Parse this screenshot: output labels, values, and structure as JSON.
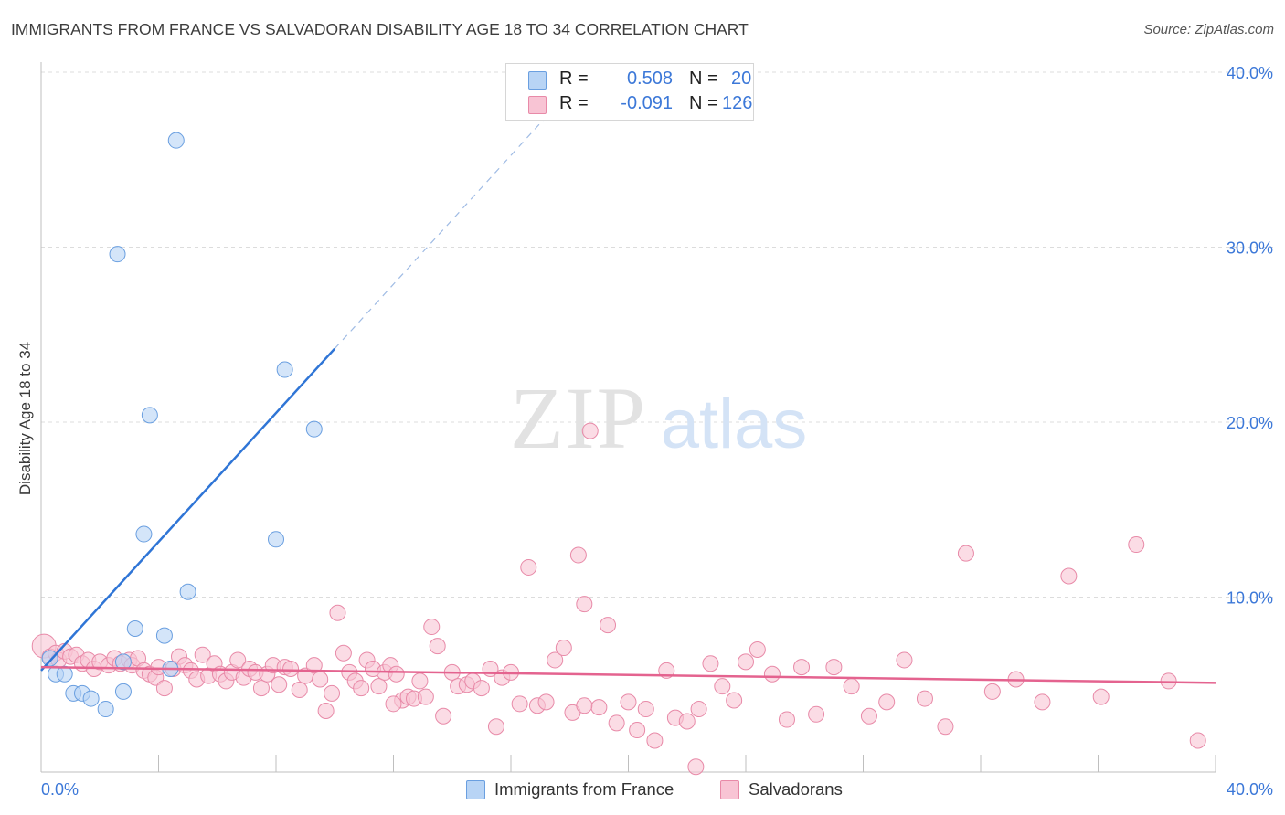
{
  "title": "IMMIGRANTS FROM FRANCE VS SALVADORAN DISABILITY AGE 18 TO 34 CORRELATION CHART",
  "source": "Source: ZipAtlas.com",
  "watermark": {
    "zip": "ZIP",
    "atlas": "atlas"
  },
  "legend": {
    "rows": [
      {
        "r_key": "R =",
        "r_value": "0.508",
        "n_key": "N =",
        "n_value": "20",
        "color": "#9ec5f2"
      },
      {
        "r_key": "R =",
        "r_value": "-0.091",
        "n_key": "N =",
        "n_value": "126",
        "color": "#f4b4c8"
      }
    ]
  },
  "bottom_legend": {
    "items": [
      {
        "label": "Immigrants from France",
        "color": "#9ec5f2"
      },
      {
        "label": "Salvadorans",
        "color": "#f4b4c8"
      }
    ]
  },
  "colors": {
    "france_fill": "#b8d4f5",
    "france_stroke": "#6a9fe0",
    "france_line": "#2f75d6",
    "salv_fill": "#f8c4d4",
    "salv_stroke": "#e88aa8",
    "salv_line": "#e4638f",
    "tick_label": "#3c78d8",
    "grid": "#dcdcdc"
  },
  "chart_data": {
    "type": "scatter",
    "title": "IMMIGRANTS FROM FRANCE VS SALVADORAN DISABILITY AGE 18 TO 34 CORRELATION CHART",
    "xlabel": "",
    "ylabel": "Disability Age 18 to 34",
    "xlim": [
      0,
      40
    ],
    "ylim": [
      0,
      40
    ],
    "x_tick_labels": [
      "0.0%",
      "40.0%"
    ],
    "y_ticks": [
      10,
      20,
      30,
      40
    ],
    "y_tick_labels": [
      "10.0%",
      "20.0%",
      "30.0%",
      "40.0%"
    ],
    "grid": true,
    "legend_position": "top-center",
    "series": [
      {
        "name": "Immigrants from France",
        "r": 0.508,
        "n": 20,
        "trend": {
          "x0": 0.0,
          "y0": 5.8,
          "x1": 10.0,
          "y1": 24.2,
          "dashed_to_x": 18.5
        },
        "points": [
          [
            0.3,
            6.5
          ],
          [
            0.5,
            5.6
          ],
          [
            0.8,
            5.6
          ],
          [
            1.1,
            4.5
          ],
          [
            1.4,
            4.5
          ],
          [
            1.7,
            4.2
          ],
          [
            2.2,
            3.6
          ],
          [
            2.8,
            4.6
          ],
          [
            2.8,
            6.3
          ],
          [
            3.2,
            8.2
          ],
          [
            3.5,
            13.6
          ],
          [
            3.7,
            20.4
          ],
          [
            4.2,
            7.8
          ],
          [
            4.4,
            5.9
          ],
          [
            4.6,
            36.1
          ],
          [
            5.0,
            10.3
          ],
          [
            8.0,
            13.3
          ],
          [
            8.3,
            23.0
          ],
          [
            9.3,
            19.6
          ],
          [
            2.6,
            29.6
          ]
        ]
      },
      {
        "name": "Salvadorans",
        "r": -0.091,
        "n": 126,
        "trend": {
          "x0": 0.0,
          "y0": 6.0,
          "x1": 40.0,
          "y1": 5.1
        },
        "points": [
          [
            0.1,
            7.2
          ],
          [
            0.3,
            6.6
          ],
          [
            0.5,
            6.8
          ],
          [
            0.6,
            6.4
          ],
          [
            0.8,
            6.9
          ],
          [
            1.0,
            6.6
          ],
          [
            1.2,
            6.7
          ],
          [
            1.4,
            6.2
          ],
          [
            1.6,
            6.4
          ],
          [
            1.8,
            5.9
          ],
          [
            2.0,
            6.3
          ],
          [
            2.3,
            6.1
          ],
          [
            2.5,
            6.5
          ],
          [
            2.7,
            6.2
          ],
          [
            3.0,
            6.4
          ],
          [
            3.1,
            6.1
          ],
          [
            3.3,
            6.5
          ],
          [
            3.5,
            5.8
          ],
          [
            3.7,
            5.6
          ],
          [
            3.9,
            5.4
          ],
          [
            4.0,
            6.0
          ],
          [
            4.2,
            4.8
          ],
          [
            4.5,
            5.9
          ],
          [
            4.7,
            6.6
          ],
          [
            4.9,
            6.1
          ],
          [
            5.1,
            5.8
          ],
          [
            5.3,
            5.3
          ],
          [
            5.5,
            6.7
          ],
          [
            5.7,
            5.5
          ],
          [
            5.9,
            6.2
          ],
          [
            6.1,
            5.6
          ],
          [
            6.3,
            5.2
          ],
          [
            6.5,
            5.7
          ],
          [
            6.7,
            6.4
          ],
          [
            6.9,
            5.4
          ],
          [
            7.1,
            5.9
          ],
          [
            7.3,
            5.7
          ],
          [
            7.5,
            4.8
          ],
          [
            7.7,
            5.6
          ],
          [
            7.9,
            6.1
          ],
          [
            8.1,
            5.0
          ],
          [
            8.3,
            6.0
          ],
          [
            8.5,
            5.9
          ],
          [
            8.8,
            4.7
          ],
          [
            9.0,
            5.5
          ],
          [
            9.3,
            6.1
          ],
          [
            9.5,
            5.3
          ],
          [
            9.7,
            3.5
          ],
          [
            9.9,
            4.5
          ],
          [
            10.1,
            9.1
          ],
          [
            10.3,
            6.8
          ],
          [
            10.5,
            5.7
          ],
          [
            10.7,
            5.2
          ],
          [
            10.9,
            4.8
          ],
          [
            11.1,
            6.4
          ],
          [
            11.3,
            5.9
          ],
          [
            11.5,
            4.9
          ],
          [
            11.7,
            5.7
          ],
          [
            11.9,
            6.1
          ],
          [
            12.1,
            5.6
          ],
          [
            12.3,
            4.1
          ],
          [
            12.5,
            4.3
          ],
          [
            12.7,
            4.2
          ],
          [
            12.9,
            5.2
          ],
          [
            13.1,
            4.3
          ],
          [
            13.3,
            8.3
          ],
          [
            13.5,
            7.2
          ],
          [
            13.7,
            3.2
          ],
          [
            14.0,
            5.7
          ],
          [
            14.2,
            4.9
          ],
          [
            14.5,
            5.0
          ],
          [
            14.7,
            5.2
          ],
          [
            15.0,
            4.8
          ],
          [
            15.3,
            5.9
          ],
          [
            15.5,
            2.6
          ],
          [
            15.7,
            5.4
          ],
          [
            16.0,
            5.7
          ],
          [
            16.3,
            3.9
          ],
          [
            16.6,
            11.7
          ],
          [
            16.9,
            3.8
          ],
          [
            17.2,
            4.0
          ],
          [
            17.5,
            6.4
          ],
          [
            17.8,
            7.1
          ],
          [
            18.1,
            3.4
          ],
          [
            18.3,
            12.4
          ],
          [
            18.5,
            9.6
          ],
          [
            18.7,
            19.5
          ],
          [
            19.0,
            3.7
          ],
          [
            19.3,
            8.4
          ],
          [
            19.6,
            2.8
          ],
          [
            20.0,
            4.0
          ],
          [
            20.3,
            2.4
          ],
          [
            20.6,
            3.6
          ],
          [
            20.9,
            1.8
          ],
          [
            21.3,
            5.8
          ],
          [
            21.6,
            3.1
          ],
          [
            22.0,
            2.9
          ],
          [
            22.4,
            3.6
          ],
          [
            22.8,
            6.2
          ],
          [
            23.2,
            4.9
          ],
          [
            23.6,
            4.1
          ],
          [
            24.0,
            6.3
          ],
          [
            24.4,
            7.0
          ],
          [
            24.9,
            5.6
          ],
          [
            25.4,
            3.0
          ],
          [
            25.9,
            6.0
          ],
          [
            26.4,
            3.3
          ],
          [
            27.0,
            6.0
          ],
          [
            27.6,
            4.9
          ],
          [
            28.2,
            3.2
          ],
          [
            28.8,
            4.0
          ],
          [
            29.4,
            6.4
          ],
          [
            30.1,
            4.2
          ],
          [
            30.8,
            2.6
          ],
          [
            31.5,
            12.5
          ],
          [
            32.4,
            4.6
          ],
          [
            33.2,
            5.3
          ],
          [
            34.1,
            4.0
          ],
          [
            35.0,
            11.2
          ],
          [
            36.1,
            4.3
          ],
          [
            37.3,
            13.0
          ],
          [
            38.4,
            5.2
          ],
          [
            39.4,
            1.8
          ],
          [
            22.3,
            0.3
          ],
          [
            18.5,
            3.8
          ],
          [
            12.0,
            3.9
          ]
        ]
      }
    ]
  }
}
